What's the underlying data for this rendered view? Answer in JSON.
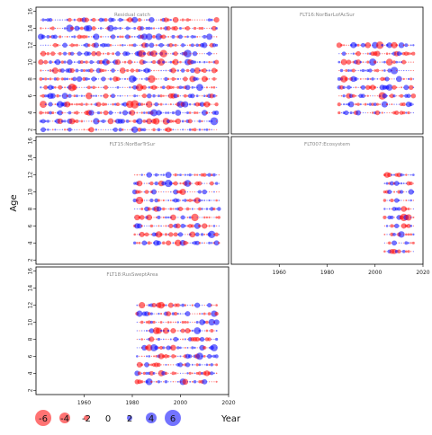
{
  "chart_data": {
    "type": "scatter",
    "variant": "bubble-residual-panels",
    "xlabel": "Year",
    "ylabel": "Age",
    "xlim": [
      1940,
      2020
    ],
    "ylim": [
      1.5,
      16.5
    ],
    "x_ticks": [
      1960,
      1980,
      2000,
      2020
    ],
    "y_ticks": [
      2,
      4,
      6,
      8,
      10,
      12,
      14,
      16
    ],
    "colors": {
      "positive": "#0000ff",
      "negative": "#ff0000",
      "frame": "#000000"
    },
    "legend": {
      "placement": "bottom-left",
      "values": [
        -6,
        -4,
        -2,
        0,
        2,
        4,
        6
      ],
      "labels": [
        "-6",
        "-4",
        "-2",
        "0",
        "2",
        "4",
        "6"
      ]
    },
    "panels": [
      {
        "title": "Residual catch",
        "years": [
          1942,
          2015
        ],
        "ages": [
          2,
          15
        ]
      },
      {
        "title": "FLT16:NorBarLofAcSur",
        "years": [
          1985,
          2016
        ],
        "ages": [
          4,
          12
        ]
      },
      {
        "title": "FLT15:NorBarTrSur",
        "years": [
          1981,
          2016
        ],
        "ages": [
          4,
          12
        ]
      },
      {
        "title": "FLT007:Ecosystem",
        "years": [
          2004,
          2016
        ],
        "ages": [
          3,
          12
        ]
      },
      {
        "title": "FLT18:RusSweptArea",
        "years": [
          1982,
          2015
        ],
        "ages": [
          3,
          12
        ]
      }
    ]
  }
}
